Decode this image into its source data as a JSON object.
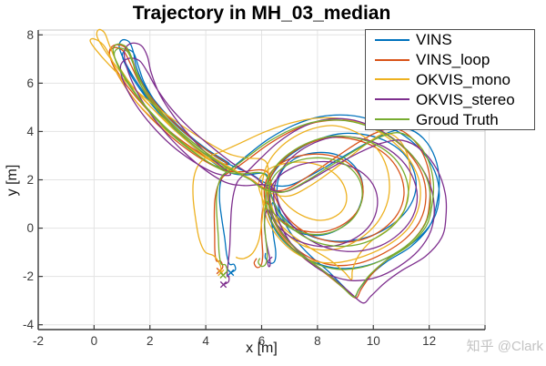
{
  "title": "Trajectory in MH_03_median",
  "watermark": "知乎 @Clark",
  "axes": {
    "xlabel": "x [m]",
    "ylabel": "y [m]",
    "xlim": [
      -2,
      14
    ],
    "ylim": [
      -4.2,
      8.2
    ],
    "xticks": [
      -2,
      0,
      2,
      4,
      6,
      8,
      10,
      12,
      14
    ],
    "xtick_labels": [
      "-2",
      "0",
      "2",
      "4",
      "6",
      "8",
      "10",
      "12",
      ""
    ],
    "yticks": [
      -4,
      -2,
      0,
      2,
      4,
      6,
      8
    ],
    "ytick_labels": [
      "-4",
      "-2",
      "0",
      "2",
      "4",
      "6",
      "8"
    ],
    "xgrid": [
      0,
      2,
      4,
      6,
      8,
      10,
      12
    ],
    "ygrid": [
      -4,
      -2,
      0,
      2,
      4,
      6,
      8
    ],
    "grid_on": true
  },
  "style": {
    "grid_color": "#e3e3e3",
    "axis_dark": "#3a3a3a",
    "axis_light": "#c9c9c9",
    "tick_len": 5,
    "line_width": 1.3
  },
  "legend": {
    "position": "northeast",
    "entries": [
      {
        "label": "VINS",
        "color": "#0072BD"
      },
      {
        "label": "VINS_loop",
        "color": "#D95319"
      },
      {
        "label": "OKVIS_mono",
        "color": "#EDB120"
      },
      {
        "label": "OKVIS_stereo",
        "color": "#7E2F8E"
      },
      {
        "label": "Groud Truth",
        "color": "#77AC30"
      }
    ]
  },
  "chart_data": {
    "type": "line",
    "title": "Trajectory in MH_03_median",
    "xlabel": "x [m]",
    "ylabel": "y [m]",
    "xlim": [
      -2,
      14
    ],
    "ylim": [
      -4.2,
      8.2
    ],
    "legend_position": "northeast",
    "grid": true,
    "start_marker": {
      "shape": "x",
      "at": [
        4.62,
        -1.95
      ]
    },
    "base_path": [
      [
        4.62,
        -1.95
      ],
      [
        4.76,
        -1.78
      ],
      [
        4.7,
        -1.52
      ],
      [
        4.55,
        -1.48
      ],
      [
        4.48,
        -1.05
      ],
      [
        4.45,
        -0.35
      ],
      [
        4.4,
        0.45
      ],
      [
        4.38,
        1.15
      ],
      [
        4.44,
        1.75
      ],
      [
        4.6,
        2.18
      ],
      [
        5.0,
        2.52
      ],
      [
        5.55,
        3.0
      ],
      [
        6.25,
        3.58
      ],
      [
        7.1,
        4.1
      ],
      [
        8.0,
        4.42
      ],
      [
        9.0,
        4.45
      ],
      [
        9.9,
        4.18
      ],
      [
        10.7,
        3.7
      ],
      [
        11.4,
        3.0
      ],
      [
        11.9,
        2.1
      ],
      [
        12.05,
        1.1
      ],
      [
        11.85,
        0.15
      ],
      [
        11.3,
        -0.62
      ],
      [
        10.5,
        -1.22
      ],
      [
        9.6,
        -1.62
      ],
      [
        8.7,
        -1.7
      ],
      [
        7.9,
        -1.45
      ],
      [
        7.2,
        -0.95
      ],
      [
        6.65,
        -0.3
      ],
      [
        6.3,
        0.45
      ],
      [
        6.15,
        1.2
      ],
      [
        6.2,
        1.9
      ],
      [
        6.5,
        2.55
      ],
      [
        7.0,
        3.1
      ],
      [
        7.7,
        3.55
      ],
      [
        8.5,
        3.8
      ],
      [
        9.3,
        3.75
      ],
      [
        10.1,
        3.45
      ],
      [
        10.75,
        2.9
      ],
      [
        11.15,
        2.15
      ],
      [
        11.25,
        1.3
      ],
      [
        11.0,
        0.5
      ],
      [
        10.45,
        -0.15
      ],
      [
        9.7,
        -0.6
      ],
      [
        8.85,
        -0.75
      ],
      [
        8.0,
        -0.6
      ],
      [
        7.25,
        -0.15
      ],
      [
        6.7,
        0.5
      ],
      [
        6.35,
        1.3
      ],
      [
        6.2,
        2.1
      ],
      [
        5.9,
        2.3
      ],
      [
        5.3,
        2.25
      ],
      [
        4.7,
        2.35
      ],
      [
        4.0,
        2.8
      ],
      [
        3.2,
        3.5
      ],
      [
        2.4,
        4.35
      ],
      [
        1.7,
        5.25
      ],
      [
        1.15,
        6.15
      ],
      [
        0.8,
        6.9
      ],
      [
        0.68,
        7.4
      ],
      [
        0.85,
        7.62
      ],
      [
        1.15,
        7.5
      ],
      [
        1.35,
        7.05
      ],
      [
        1.5,
        6.4
      ],
      [
        1.85,
        5.55
      ],
      [
        2.45,
        4.65
      ],
      [
        3.2,
        3.8
      ],
      [
        4.0,
        3.05
      ],
      [
        4.75,
        2.5
      ],
      [
        4.3,
        2.6
      ],
      [
        3.55,
        3.15
      ],
      [
        2.75,
        3.9
      ],
      [
        2.0,
        4.8
      ],
      [
        1.35,
        5.75
      ],
      [
        0.9,
        6.6
      ],
      [
        0.72,
        7.2
      ],
      [
        0.9,
        7.45
      ],
      [
        1.2,
        7.3
      ],
      [
        1.42,
        6.75
      ],
      [
        1.7,
        6.0
      ],
      [
        2.2,
        5.1
      ],
      [
        2.9,
        4.2
      ],
      [
        3.7,
        3.4
      ],
      [
        4.5,
        2.7
      ],
      [
        5.1,
        2.3
      ],
      [
        5.6,
        2.0
      ],
      [
        6.1,
        1.6
      ],
      [
        6.8,
        1.5
      ],
      [
        7.6,
        1.95
      ],
      [
        8.5,
        2.6
      ],
      [
        9.4,
        3.25
      ],
      [
        10.2,
        3.75
      ],
      [
        10.9,
        3.95
      ],
      [
        11.5,
        3.6
      ],
      [
        11.95,
        2.85
      ],
      [
        12.15,
        1.9
      ],
      [
        12.1,
        0.95
      ],
      [
        11.9,
        0.1
      ],
      [
        11.3,
        -0.7
      ],
      [
        10.5,
        -1.3
      ],
      [
        9.9,
        -1.9
      ],
      [
        9.5,
        -2.5
      ],
      [
        9.3,
        -2.85
      ],
      [
        8.9,
        -2.45
      ],
      [
        8.3,
        -1.85
      ],
      [
        7.6,
        -1.25
      ],
      [
        7.0,
        -0.6
      ],
      [
        6.55,
        0.1
      ],
      [
        6.3,
        0.8
      ],
      [
        6.25,
        1.5
      ],
      [
        6.35,
        1.95
      ],
      [
        6.6,
        2.35
      ],
      [
        7.1,
        2.72
      ],
      [
        7.8,
        2.9
      ],
      [
        8.5,
        2.85
      ],
      [
        9.1,
        2.55
      ],
      [
        9.5,
        2.0
      ],
      [
        9.6,
        1.3
      ],
      [
        9.4,
        0.6
      ],
      [
        8.9,
        0.05
      ],
      [
        8.2,
        -0.25
      ],
      [
        7.5,
        -0.2
      ],
      [
        6.9,
        0.1
      ],
      [
        6.45,
        0.6
      ],
      [
        6.2,
        1.1
      ],
      [
        6.1,
        0.45
      ],
      [
        6.14,
        -0.35
      ],
      [
        6.2,
        -1.05
      ],
      [
        6.15,
        -1.48
      ],
      [
        6.0,
        -1.58
      ],
      [
        5.88,
        -1.42
      ],
      [
        5.93,
        -1.26
      ]
    ],
    "series": [
      {
        "name": "VINS",
        "color": "#0072BD",
        "dx": 0.15,
        "dy": 0.1,
        "amp": 0.16,
        "phase": 0.9
      },
      {
        "name": "VINS_loop",
        "color": "#D95319",
        "dx": -0.05,
        "dy": 0.06,
        "amp": 0.12,
        "phase": 3.8
      },
      {
        "name": "OKVIS_mono",
        "color": "#EDB120",
        "dx": -0.35,
        "dy": 0.28,
        "amp": 0.5,
        "phase": 2.56
      },
      {
        "name": "OKVIS_stereo",
        "color": "#7E2F8E",
        "dx": 0.28,
        "dy": -0.22,
        "amp": 0.28,
        "phase": 5.0
      },
      {
        "name": "Groud Truth",
        "color": "#77AC30",
        "dx": 0.0,
        "dy": 0.0,
        "amp": 0.0,
        "phase": 0.0
      }
    ]
  }
}
